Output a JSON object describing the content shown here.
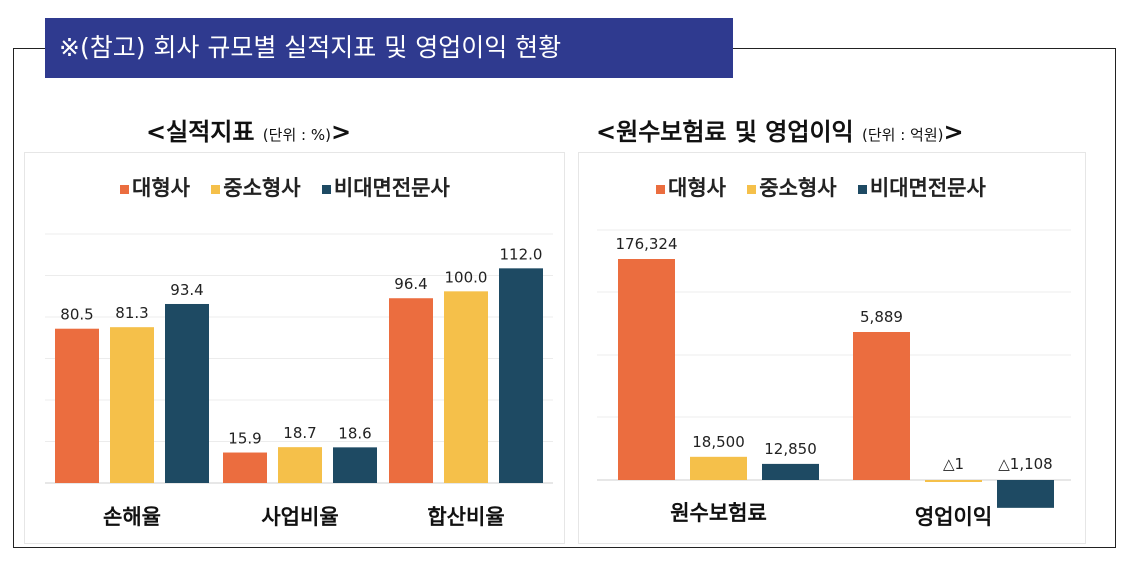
{
  "header": {
    "title": "※(참고) 회사 규모별 실적지표 및 영업이익 현황"
  },
  "colors": {
    "large": "#eb6d3f",
    "smallmid": "#f5c04a",
    "nonface": "#1e4a63",
    "header_bg": "#2f3a8f"
  },
  "chart_data": [
    {
      "type": "bar",
      "title": "<실적지표",
      "unit": "(단위 : %)",
      "title_suffix": ">",
      "categories": [
        "손해율",
        "사업비율",
        "합산비율"
      ],
      "series": [
        {
          "name": "대형사",
          "values": [
            80.5,
            15.9,
            96.4
          ],
          "labels": [
            "80.5",
            "15.9",
            "96.4"
          ]
        },
        {
          "name": "중소형사",
          "values": [
            81.3,
            18.7,
            100.0
          ],
          "labels": [
            "81.3",
            "18.7",
            "100.0"
          ]
        },
        {
          "name": "비대면전문사",
          "values": [
            93.4,
            18.6,
            112.0
          ],
          "labels": [
            "93.4",
            "18.6",
            "112.0"
          ]
        }
      ],
      "ylim": [
        0,
        120
      ],
      "grid": true,
      "legend": "top"
    },
    {
      "type": "bar",
      "title": "<원수보험료 및 영업이익",
      "unit": "(단위 : 억원)",
      "title_suffix": ">",
      "categories": [
        "원수보험료",
        "영업이익"
      ],
      "series": [
        {
          "name": "대형사",
          "values": [
            176324,
            5889
          ],
          "labels": [
            "176,324",
            "5,889"
          ]
        },
        {
          "name": "중소형사",
          "values": [
            18500,
            -1
          ],
          "labels": [
            "18,500",
            "△1"
          ]
        },
        {
          "name": "비대면전문사",
          "values": [
            12850,
            -1108
          ],
          "labels": [
            "12,850",
            "△1,108"
          ]
        }
      ],
      "note": "영업이익 values shown on a separate visual scale within the same panel",
      "grid": true,
      "legend": "top"
    }
  ]
}
